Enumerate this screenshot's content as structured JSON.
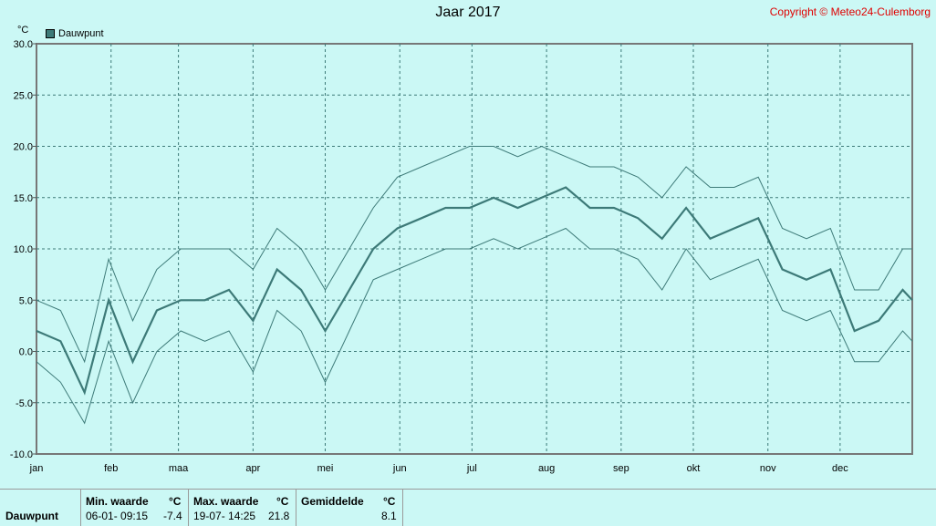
{
  "title": "Jaar 2017",
  "copyright": "Copyright © Meteo24-Culemborg",
  "unit_label": "°C",
  "legend_label": "Dauwpunt",
  "colors": {
    "series": "#3d7a78",
    "background": "#cbf8f5",
    "grid": "#3d7a78",
    "copyright": "#e00000"
  },
  "chart_data": {
    "type": "line",
    "ylim": [
      -10,
      30
    ],
    "y_ticks": [
      "-10.0",
      "-5.0",
      "0.0",
      "5.0",
      "10.0",
      "15.0",
      "20.0",
      "25.0",
      "30.0"
    ],
    "x_ticks": [
      "jan",
      "feb",
      "maa",
      "apr",
      "mei",
      "jun",
      "jul",
      "aug",
      "sep",
      "okt",
      "nov",
      "dec"
    ],
    "x_tick_days": [
      1,
      32,
      60,
      91,
      121,
      152,
      182,
      213,
      244,
      274,
      305,
      335
    ],
    "grid": true,
    "series": [
      {
        "name": "Dauwpunt",
        "x_days": [
          1,
          11,
          21,
          31,
          41,
          51,
          61,
          71,
          81,
          91,
          101,
          111,
          121,
          131,
          141,
          151,
          161,
          171,
          181,
          191,
          201,
          211,
          221,
          231,
          241,
          251,
          261,
          271,
          281,
          291,
          301,
          311,
          321,
          331,
          341,
          351,
          361,
          365
        ],
        "avg": [
          2,
          1,
          -4,
          5,
          -1,
          4,
          5,
          5,
          6,
          3,
          8,
          6,
          2,
          6,
          10,
          12,
          13,
          14,
          14,
          15,
          14,
          15,
          16,
          14,
          14,
          13,
          11,
          14,
          11,
          12,
          13,
          8,
          7,
          8,
          2,
          3,
          6,
          5
        ],
        "min": [
          -1,
          -3,
          -7,
          1,
          -5,
          0,
          2,
          1,
          2,
          -2,
          4,
          2,
          -3,
          2,
          7,
          8,
          9,
          10,
          10,
          11,
          10,
          11,
          12,
          10,
          10,
          9,
          6,
          10,
          7,
          8,
          9,
          4,
          3,
          4,
          -1,
          -1,
          2,
          1
        ],
        "max": [
          5,
          4,
          -1,
          9,
          3,
          8,
          10,
          10,
          10,
          8,
          12,
          10,
          6,
          10,
          14,
          17,
          18,
          19,
          20,
          20,
          19,
          20,
          19,
          18,
          18,
          17,
          15,
          18,
          16,
          16,
          17,
          12,
          11,
          12,
          6,
          6,
          10,
          10
        ]
      }
    ]
  },
  "stats": {
    "row_label": "Dauwpunt",
    "min_header": "Min. waarde",
    "max_header": "Max. waarde",
    "avg_header": "Gemiddelde",
    "unit_header": "°C",
    "min_time": "06-01-  09:15",
    "min_value": "-7.4",
    "max_time": "19-07-  14:25",
    "max_value": "21.8",
    "avg_value": "8.1"
  }
}
